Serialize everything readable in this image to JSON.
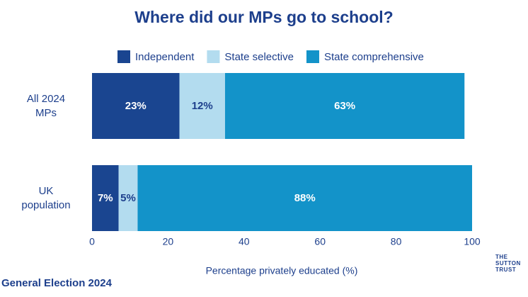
{
  "chart_data": {
    "type": "stacked_barh",
    "title": "Where did our MPs go to school?",
    "categories": [
      "All 2024 MPs",
      "UK population"
    ],
    "series": [
      {
        "name": "Independent",
        "color": "#1a4590",
        "values": [
          23,
          7
        ],
        "value_labels": [
          "23%",
          "7%"
        ]
      },
      {
        "name": "State selective",
        "color": "#b3dcef",
        "values": [
          12,
          5
        ],
        "value_labels": [
          "12%",
          "5%"
        ]
      },
      {
        "name": "State comprehensive",
        "color": "#1393c9",
        "values": [
          63,
          88
        ],
        "value_labels": [
          "63%",
          "88%"
        ]
      }
    ],
    "xlabel": "Percentage privately educated (%)",
    "xlim": [
      0,
      100
    ],
    "xticks": [
      0,
      20,
      40,
      60,
      80,
      100
    ],
    "grid": false,
    "annotations": [
      "General Election 2024",
      "THE SUTTON TRUST"
    ]
  }
}
